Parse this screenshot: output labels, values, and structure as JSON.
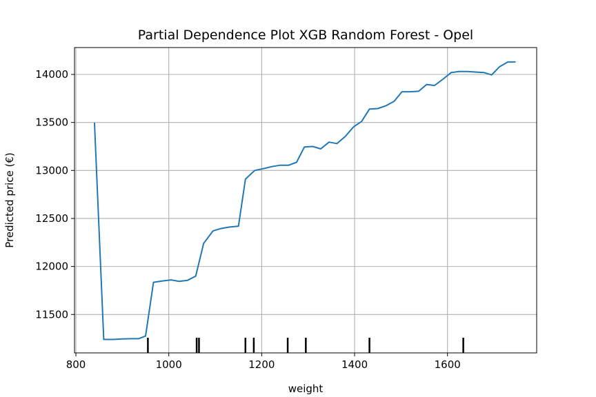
{
  "chart_data": {
    "type": "line",
    "title": "Partial Dependence Plot XGB Random Forest - Opel",
    "xlabel": "weight",
    "ylabel": "Predicted price (€)",
    "xlim": [
      797,
      1792
    ],
    "ylim": [
      11100,
      14280
    ],
    "xticks": [
      800,
      1000,
      1200,
      1400,
      1600
    ],
    "yticks": [
      11500,
      12000,
      12500,
      13000,
      13500,
      14000
    ],
    "grid": true,
    "colors": {
      "line": "#1f77b4",
      "grid": "#b0b0b0",
      "axes": "#000000",
      "rug": "#000000"
    },
    "series": [
      {
        "x": [
          840,
          860,
          880,
          900,
          920,
          935,
          950,
          967,
          985,
          1005,
          1022,
          1040,
          1058,
          1075,
          1095,
          1112,
          1130,
          1150,
          1165,
          1185,
          1205,
          1222,
          1240,
          1258,
          1275,
          1292,
          1310,
          1327,
          1345,
          1362,
          1380,
          1398,
          1415,
          1432,
          1450,
          1468,
          1485,
          1502,
          1520,
          1538,
          1555,
          1572,
          1590,
          1608,
          1625,
          1642,
          1660,
          1678,
          1695,
          1712,
          1730,
          1745
        ],
        "y": [
          13490,
          11240,
          11240,
          11245,
          11248,
          11248,
          11275,
          11835,
          11848,
          11860,
          11845,
          11855,
          11900,
          12240,
          12370,
          12395,
          12410,
          12420,
          12910,
          13000,
          13020,
          13040,
          13055,
          13055,
          13085,
          13245,
          13250,
          13225,
          13295,
          13280,
          13355,
          13455,
          13510,
          13640,
          13645,
          13675,
          13720,
          13820,
          13820,
          13825,
          13895,
          13885,
          13950,
          14020,
          14030,
          14030,
          14025,
          14020,
          13995,
          14080,
          14130,
          14130
        ]
      }
    ],
    "rug_x": [
      955,
      1060,
      1065,
      1165,
      1183,
      1256,
      1295,
      1432,
      1634
    ]
  }
}
